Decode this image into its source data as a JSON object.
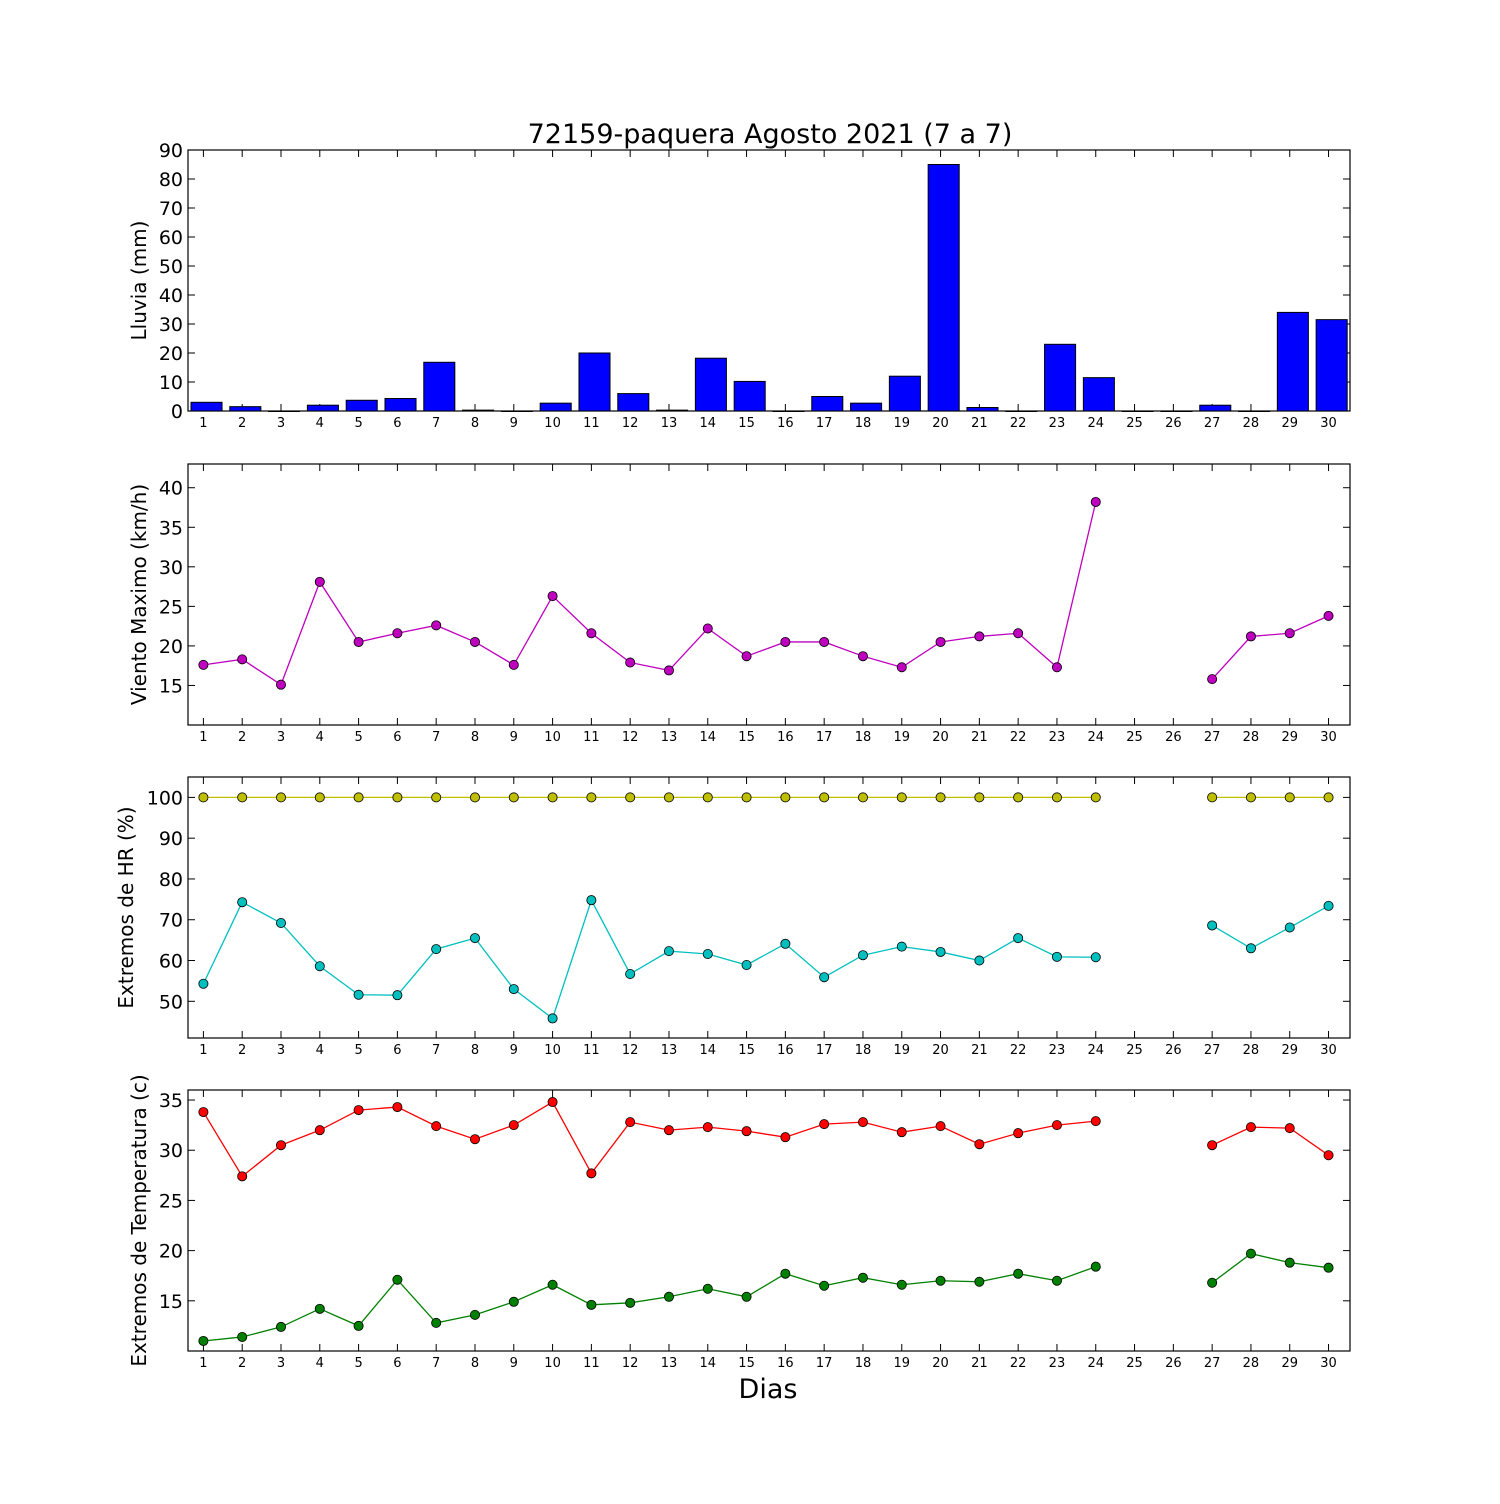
{
  "chart_data": {
    "title": "72159-paquera Agosto 2021  (7 a 7)",
    "xlabel": "Dias",
    "days": [
      1,
      2,
      3,
      4,
      5,
      6,
      7,
      8,
      9,
      10,
      11,
      12,
      13,
      14,
      15,
      16,
      17,
      18,
      19,
      20,
      21,
      22,
      23,
      24,
      25,
      26,
      27,
      28,
      29,
      30
    ],
    "panels": [
      {
        "type": "bar",
        "ylabel": "Lluvia (mm)",
        "ylim": [
          0,
          90
        ],
        "yticks": [
          0,
          10,
          20,
          30,
          40,
          50,
          60,
          70,
          80,
          90
        ],
        "series": [
          {
            "color": "#0000ff",
            "values": [
              3.0,
              1.5,
              0,
              2.0,
              3.7,
              4.3,
              16.8,
              0.3,
              0,
              2.7,
              20.0,
              6.0,
              0.3,
              18.2,
              10.2,
              0,
              5.0,
              2.7,
              12.0,
              85.0,
              1.2,
              0,
              23.0,
              11.5,
              0,
              0,
              2.0,
              0,
              34.0,
              31.5
            ]
          }
        ]
      },
      {
        "type": "line",
        "ylabel": "Viento Maximo (km/h)",
        "ylim": [
          10,
          43
        ],
        "yticks": [
          15,
          20,
          25,
          30,
          35,
          40
        ],
        "series": [
          {
            "color": "#bf00bf",
            "values": [
              17.6,
              18.3,
              15.1,
              28.1,
              20.5,
              21.6,
              22.6,
              20.5,
              17.6,
              26.3,
              21.6,
              17.9,
              16.9,
              22.2,
              18.7,
              20.5,
              20.5,
              18.7,
              17.3,
              20.5,
              21.2,
              21.6,
              17.3,
              38.2,
              null,
              null,
              15.8,
              21.2,
              21.6,
              23.8
            ]
          }
        ]
      },
      {
        "type": "line",
        "ylabel": "Extremos de HR (%)",
        "ylim": [
          41,
          105
        ],
        "yticks": [
          50,
          60,
          70,
          80,
          90,
          100
        ],
        "series": [
          {
            "color": "#bfbf00",
            "values": [
              100,
              100,
              100,
              100,
              100,
              100,
              100,
              100,
              100,
              100,
              100,
              100,
              100,
              100,
              100,
              100,
              100,
              100,
              100,
              100,
              100,
              100,
              100,
              100,
              null,
              null,
              100,
              100,
              100,
              100
            ]
          },
          {
            "color": "#00bfbf",
            "values": [
              54.3,
              74.3,
              69.2,
              58.6,
              51.6,
              51.5,
              62.8,
              65.5,
              53.0,
              45.8,
              74.8,
              56.7,
              62.3,
              61.6,
              58.9,
              64.1,
              55.9,
              61.3,
              63.4,
              62.1,
              60.0,
              65.5,
              60.9,
              60.8,
              null,
              null,
              68.6,
              63.0,
              68.1,
              73.4
            ]
          }
        ]
      },
      {
        "type": "line",
        "ylabel": "Extremos de Temperatura (c)",
        "ylim": [
          10,
          36
        ],
        "yticks": [
          15,
          20,
          25,
          30,
          35
        ],
        "series": [
          {
            "color": "#ff0000",
            "values": [
              33.8,
              27.4,
              30.5,
              32.0,
              34.0,
              34.3,
              32.4,
              31.1,
              32.5,
              34.8,
              27.7,
              32.8,
              32.0,
              32.3,
              31.9,
              31.3,
              32.6,
              32.8,
              31.8,
              32.4,
              30.6,
              31.7,
              32.5,
              32.9,
              null,
              null,
              30.5,
              32.3,
              32.2,
              29.5
            ]
          },
          {
            "color": "#008000",
            "values": [
              11.0,
              11.4,
              12.4,
              14.2,
              12.5,
              17.1,
              12.8,
              13.6,
              14.9,
              16.6,
              14.6,
              14.8,
              15.4,
              16.2,
              15.4,
              17.7,
              16.5,
              17.3,
              16.6,
              17.0,
              16.9,
              17.7,
              17.0,
              18.4,
              null,
              null,
              16.8,
              19.7,
              18.8,
              18.3
            ]
          }
        ]
      }
    ]
  }
}
